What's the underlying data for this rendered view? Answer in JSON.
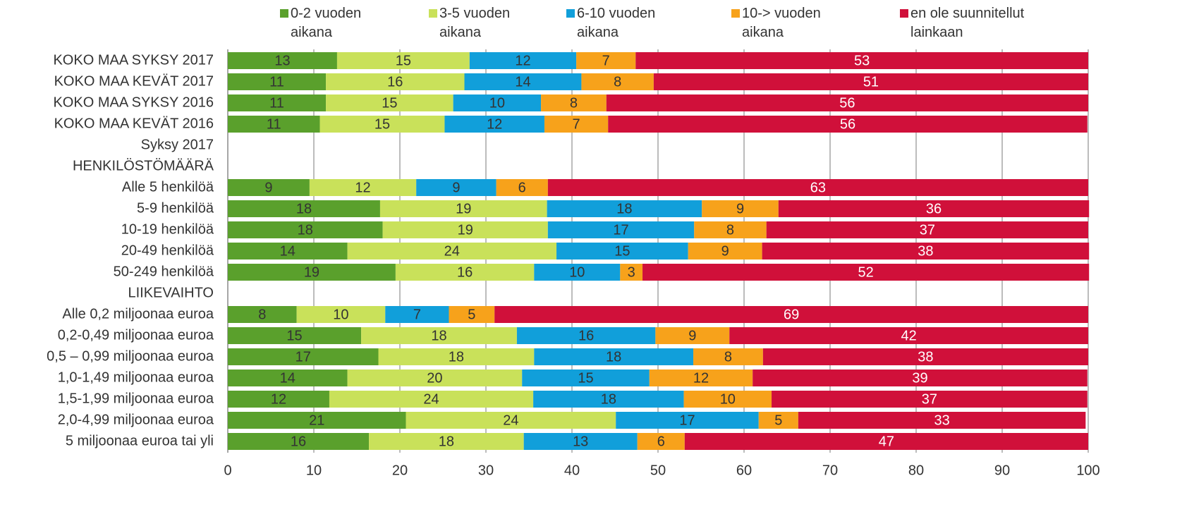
{
  "chart_data": {
    "type": "stacked-bar-horizontal",
    "categories": [
      "KOKO MAA SYKSY 2017",
      "KOKO MAA KEVÄT 2017",
      "KOKO MAA SYKSY 2016",
      "KOKO MAA KEVÄT 2016",
      "Syksy 2017",
      "HENKILÖSTÖMÄÄRÄ",
      "Alle 5 henkilöä",
      "5-9 henkilöä",
      "10-19 henkilöä",
      "20-49 henkilöä",
      "50-249 henkilöä",
      "LIIKEVAIHTO",
      "Alle 0,2 miljoonaa euroa",
      "0,2-0,49 miljoonaa euroa",
      "0,5 – 0,99 miljoonaa euroa",
      "1,0-1,49 miljoonaa euroa",
      "1,5-1,99 miljoonaa euroa",
      "2,0-4,99 miljoonaa euroa",
      "5 miljoonaa euroa tai yli"
    ],
    "series": [
      {
        "name": "0-2 vuoden aikana",
        "color": "#5aa02c",
        "label_color": "#333333",
        "values": [
          12.7,
          11.4,
          11.4,
          10.7,
          null,
          null,
          9.5,
          17.7,
          18.0,
          13.9,
          19.5,
          null,
          8.0,
          15.5,
          17.5,
          13.9,
          11.8,
          20.7,
          16.4
        ],
        "value_labels": [
          "13",
          "11",
          "11",
          "11",
          null,
          null,
          "9",
          "18",
          "18",
          "14",
          "19",
          null,
          "8",
          "15",
          "17",
          "14",
          "12",
          "21",
          "16"
        ]
      },
      {
        "name": "3-5 vuoden aikana",
        "color": "#c9e15a",
        "label_color": "#333333",
        "values": [
          15.4,
          16.1,
          14.8,
          14.5,
          null,
          null,
          12.4,
          19.4,
          19.2,
          24.3,
          16.1,
          null,
          10.3,
          18.1,
          18.1,
          20.3,
          23.7,
          24.4,
          18.0
        ],
        "value_labels": [
          "15",
          "16",
          "15",
          "15",
          null,
          null,
          "12",
          "19",
          "19",
          "24",
          "16",
          null,
          "10",
          "18",
          "18",
          "20",
          "24",
          "24",
          "18"
        ]
      },
      {
        "name": "6-10 vuoden aikana",
        "color": "#119fda",
        "label_color": "#333333",
        "values": [
          12.4,
          13.6,
          10.2,
          11.6,
          null,
          null,
          9.3,
          18.0,
          17.0,
          15.3,
          10.0,
          null,
          7.4,
          16.1,
          18.5,
          14.8,
          17.5,
          16.6,
          13.2
        ],
        "value_labels": [
          "12",
          "14",
          "10",
          "12",
          null,
          null,
          "9",
          "18",
          "17",
          "15",
          "10",
          null,
          "7",
          "16",
          "18",
          "15",
          "18",
          "17",
          "13"
        ]
      },
      {
        "name": "10-> vuoden aikana",
        "color": "#f7a21b",
        "label_color": "#333333",
        "values": [
          6.9,
          8.4,
          7.6,
          7.4,
          null,
          null,
          6.0,
          8.9,
          8.4,
          8.6,
          2.6,
          null,
          5.3,
          8.6,
          8.1,
          12.0,
          10.2,
          4.6,
          5.5
        ],
        "value_labels": [
          "7",
          "8",
          "8",
          "7",
          null,
          null,
          "6",
          "9",
          "8",
          "9",
          "3",
          null,
          "5",
          "9",
          "8",
          "12",
          "10",
          "5",
          "6"
        ]
      },
      {
        "name": "en ole suunnitellut lainkaan",
        "color": "#d0103a",
        "label_color": "#ffffff",
        "values": [
          52.6,
          50.5,
          56.0,
          55.7,
          null,
          null,
          62.8,
          36.1,
          37.4,
          38.0,
          51.9,
          null,
          69.0,
          41.7,
          37.8,
          38.9,
          36.7,
          33.4,
          46.9
        ],
        "value_labels": [
          "53",
          "51",
          "56",
          "56",
          null,
          null,
          "63",
          "36",
          "37",
          "38",
          "52",
          null,
          "69",
          "42",
          "38",
          "39",
          "37",
          "33",
          "47"
        ]
      }
    ],
    "xlim": [
      0,
      100
    ],
    "xticks": [
      0,
      10,
      20,
      30,
      40,
      50,
      60,
      70,
      80,
      90,
      100
    ],
    "grid": true,
    "legend": "top"
  }
}
